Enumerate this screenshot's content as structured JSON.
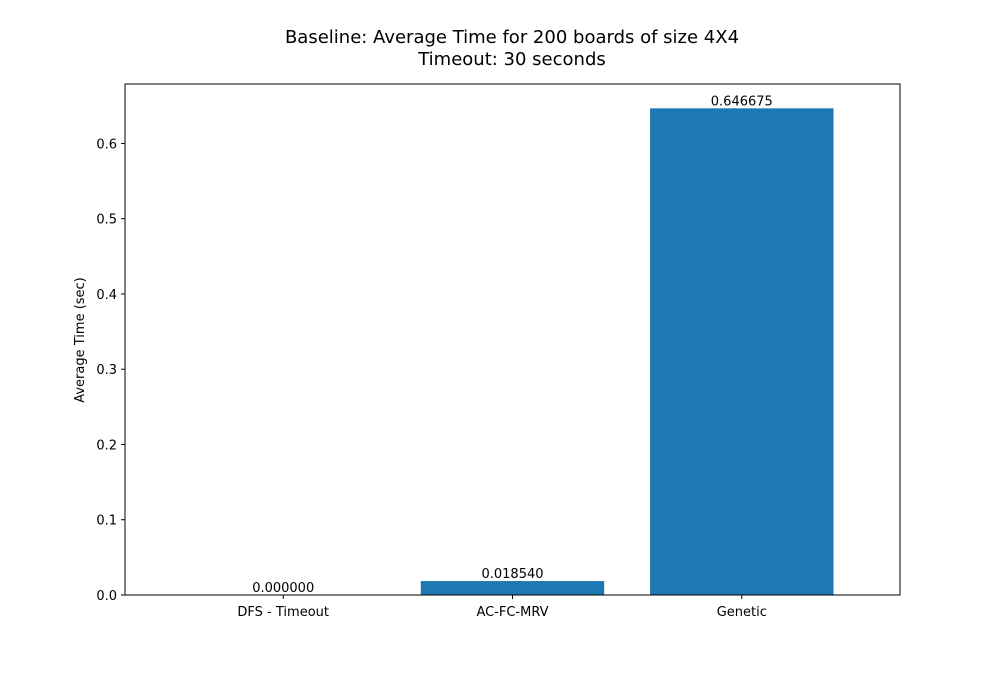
{
  "chart_data": {
    "type": "bar",
    "title": "Baseline: Average Time for 200 boards of size 4X4",
    "subtitle": "Timeout: 30 seconds",
    "xlabel": "",
    "ylabel": "Average Time (sec)",
    "categories": [
      "DFS - Timeout",
      "AC-FC-MRV",
      "Genetic"
    ],
    "values": [
      0.0,
      0.01854,
      0.646675
    ],
    "value_labels": [
      "0.000000",
      "0.018540",
      "0.646675"
    ],
    "ylim": [
      0,
      0.679
    ],
    "yticks": [
      0.0,
      0.1,
      0.2,
      0.3,
      0.4,
      0.5,
      0.6
    ],
    "ytick_labels": [
      "0.0",
      "0.1",
      "0.2",
      "0.3",
      "0.4",
      "0.5",
      "0.6"
    ],
    "grid": false,
    "bar_color": "#1f77b4"
  }
}
